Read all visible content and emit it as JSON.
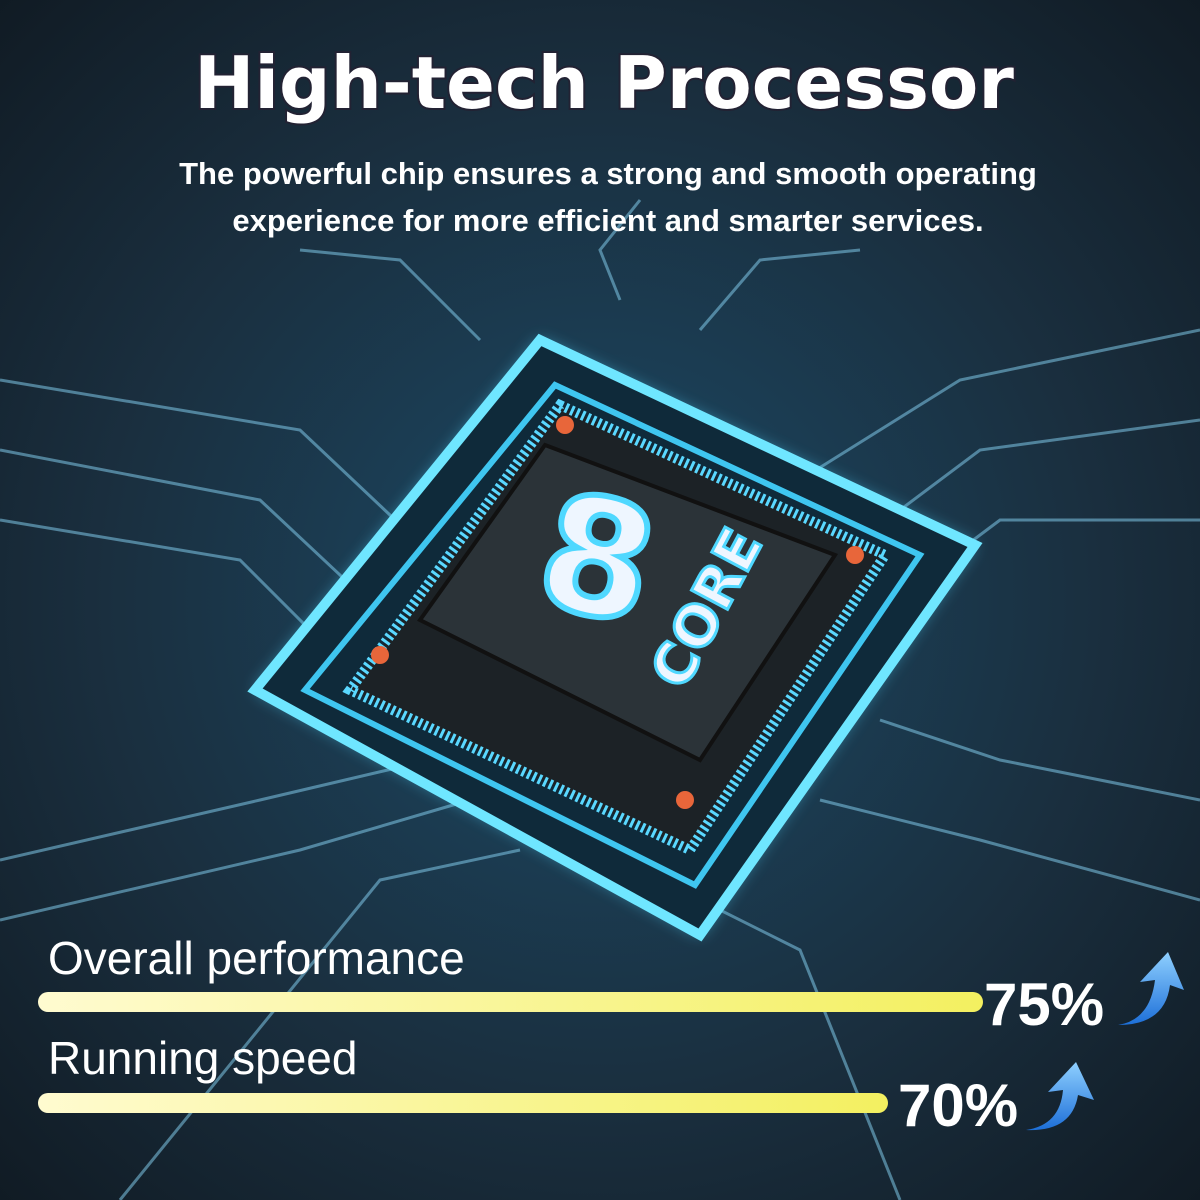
{
  "header": {
    "title": "High-tech Processor",
    "subtitle_lines": [
      "The powerful chip ensures a strong and smooth operating",
      "experience for more efficient and smarter services."
    ]
  },
  "chip": {
    "number": "8",
    "label": "CORE"
  },
  "metrics": [
    {
      "label": "Overall performance",
      "value": "75%"
    },
    {
      "label": "Running speed",
      "value": "70%"
    }
  ]
}
